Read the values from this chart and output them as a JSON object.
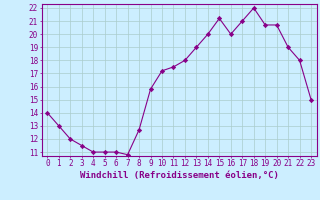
{
  "x": [
    0,
    1,
    2,
    3,
    4,
    5,
    6,
    7,
    8,
    9,
    10,
    11,
    12,
    13,
    14,
    15,
    16,
    17,
    18,
    19,
    20,
    21,
    22,
    23
  ],
  "y": [
    14.0,
    13.0,
    12.0,
    11.5,
    11.0,
    11.0,
    11.0,
    10.8,
    12.7,
    15.8,
    17.2,
    17.5,
    18.0,
    19.0,
    20.0,
    21.2,
    20.0,
    21.0,
    22.0,
    20.7,
    20.7,
    19.0,
    18.0,
    15.0
  ],
  "line_color": "#880088",
  "marker": "D",
  "marker_size": 2.2,
  "bg_color": "#cceeff",
  "grid_color": "#aacccc",
  "xlabel": "Windchill (Refroidissement éolien,°C)",
  "ylim": [
    11,
    22
  ],
  "xlim": [
    -0.5,
    23.5
  ],
  "yticks": [
    11,
    12,
    13,
    14,
    15,
    16,
    17,
    18,
    19,
    20,
    21,
    22
  ],
  "xticks": [
    0,
    1,
    2,
    3,
    4,
    5,
    6,
    7,
    8,
    9,
    10,
    11,
    12,
    13,
    14,
    15,
    16,
    17,
    18,
    19,
    20,
    21,
    22,
    23
  ],
  "axis_label_color": "#880088",
  "tick_color": "#880088",
  "spine_color": "#880088",
  "xlabel_fontsize": 6.5,
  "tick_fontsize": 5.5
}
